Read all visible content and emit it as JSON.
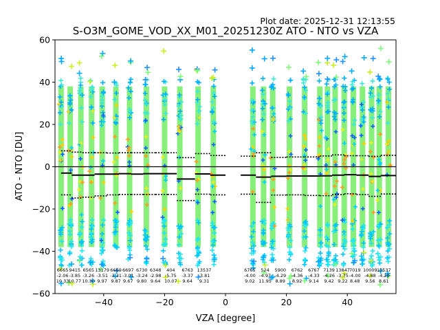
{
  "plot_date": "Plot date: 2025-12-31 12:13:55",
  "chart_data": {
    "type": "scatter",
    "title": "S-O3M_GOME_VOD_XX_M01_20251230Z ATO - NTO vs VZA",
    "xlabel": "VZA [degree]",
    "ylabel": "ATO - NTO [DU]",
    "xlim": [
      -56,
      56
    ],
    "ylim": [
      -60,
      60
    ],
    "xticks": [
      -40,
      -20,
      0,
      20,
      40
    ],
    "yticks": [
      -60,
      -40,
      -20,
      0,
      20,
      40,
      60
    ],
    "xtick_labels": [
      "−40",
      "−20",
      "0",
      "20",
      "40"
    ],
    "ytick_labels": [
      "−60",
      "−40",
      "−20",
      "0",
      "20",
      "40",
      "60"
    ],
    "scatter_columns_x": [
      -54,
      -51,
      -47.5,
      -44,
      -40.5,
      -36,
      -31.5,
      -26,
      -20,
      -15,
      -9,
      -4,
      9,
      12.5,
      15.5,
      21,
      26,
      31,
      33.5,
      36,
      39,
      42,
      45,
      48,
      50.5,
      53.5
    ],
    "zero_line": 0,
    "mean_series": {
      "name": "mean",
      "points": [
        [
          -54,
          -3
        ],
        [
          -50.5,
          -4
        ],
        [
          -47,
          -4
        ],
        [
          -43,
          -3.5
        ],
        [
          -39,
          -3.5
        ],
        [
          -35,
          -3.3
        ],
        [
          -31,
          -3.5
        ],
        [
          -27,
          -3.3
        ],
        [
          -23,
          -3.3
        ],
        [
          -19,
          -3.3
        ],
        [
          -16,
          -5.8
        ],
        [
          -10,
          -3.4
        ],
        [
          -5,
          -4
        ],
        [
          5,
          -4
        ],
        [
          10,
          -4.9
        ],
        [
          15,
          -4.5
        ],
        [
          20,
          -4.4
        ],
        [
          26,
          -4.4
        ],
        [
          31,
          -4.3
        ],
        [
          35,
          -4
        ],
        [
          39,
          -3.8
        ],
        [
          43,
          -4
        ],
        [
          47,
          -4.6
        ],
        [
          51,
          -4.2
        ],
        [
          56,
          -4
        ]
      ]
    },
    "std_upper_series": {
      "name": "mean + std",
      "points": [
        [
          -54,
          7.5
        ],
        [
          -50.5,
          6.9
        ],
        [
          -47,
          6.6
        ],
        [
          -43,
          6.6
        ],
        [
          -39,
          6.5
        ],
        [
          -35,
          6.6
        ],
        [
          -31,
          6.6
        ],
        [
          -27,
          6.6
        ],
        [
          -23,
          6.6
        ],
        [
          -19,
          6.6
        ],
        [
          -16,
          4.3
        ],
        [
          -10,
          6.2
        ],
        [
          -5,
          5.3
        ],
        [
          5,
          5.0
        ],
        [
          10,
          6.6
        ],
        [
          15,
          4.4
        ],
        [
          20,
          4.6
        ],
        [
          26,
          4.6
        ],
        [
          31,
          5.1
        ],
        [
          35,
          5.6
        ],
        [
          39,
          5.2
        ],
        [
          43,
          5.2
        ],
        [
          47,
          4.9
        ],
        [
          51,
          5.4
        ],
        [
          56,
          4.4
        ]
      ]
    },
    "std_lower_series": {
      "name": "mean - std",
      "points": [
        [
          -54,
          -13.3
        ],
        [
          -50.5,
          -14.8
        ],
        [
          -47,
          -14.4
        ],
        [
          -43,
          -13.8
        ],
        [
          -39,
          -13.3
        ],
        [
          -35,
          -13.1
        ],
        [
          -31,
          -13.1
        ],
        [
          -27,
          -13.1
        ],
        [
          -23,
          -13.1
        ],
        [
          -19,
          -13.1
        ],
        [
          -16,
          -16.0
        ],
        [
          -10,
          -13.0
        ],
        [
          -5,
          -13.3
        ],
        [
          5,
          -13.0
        ],
        [
          10,
          -16.9
        ],
        [
          15,
          -13.4
        ],
        [
          20,
          -13.3
        ],
        [
          26,
          -13.6
        ],
        [
          31,
          -13.7
        ],
        [
          35,
          -13.2
        ],
        [
          39,
          -12.8
        ],
        [
          43,
          -13.2
        ],
        [
          47,
          -14.0
        ],
        [
          51,
          -12.9
        ],
        [
          56,
          -12.6
        ]
      ]
    },
    "annotations": [
      {
        "x": -53.5,
        "count": "6665",
        "mean": "-2.06",
        "std": "10.33"
      },
      {
        "x": -49.5,
        "count": "9415",
        "mean": "-3.85",
        "std": "10.77"
      },
      {
        "x": -45,
        "count": "6565",
        "mean": "-3.26",
        "std": "10.30"
      },
      {
        "x": -40.5,
        "count": "13179",
        "mean": "-3.51",
        "std": "9.97"
      },
      {
        "x": -36,
        "count": "6669",
        "mean": "-3.31",
        "std": "9.87"
      },
      {
        "x": -32,
        "count": "6697",
        "mean": "-3.01",
        "std": "9.67"
      },
      {
        "x": -27.5,
        "count": "6730",
        "mean": "-3.24",
        "std": "9.80"
      },
      {
        "x": -23,
        "count": "6348",
        "mean": "-2.98",
        "std": "9.64"
      },
      {
        "x": -18,
        "count": "404",
        "mean": "-5.75",
        "std": "10.07"
      },
      {
        "x": -12.5,
        "count": "6763",
        "mean": "-3.37",
        "std": "9.64"
      },
      {
        "x": -7,
        "count": "13537",
        "mean": "-3.81",
        "std": "9.31"
      },
      {
        "x": 8,
        "count": "6765",
        "mean": "-4.00",
        "std": "9.02"
      },
      {
        "x": 13,
        "count": "524",
        "mean": "-4.97",
        "std": "11.95"
      },
      {
        "x": 18,
        "count": "5900",
        "mean": "-4.29",
        "std": "8.89"
      },
      {
        "x": 23.5,
        "count": "6762",
        "mean": "-4.36",
        "std": "8.92"
      },
      {
        "x": 29,
        "count": "6767",
        "mean": "-4.33",
        "std": "9.14"
      },
      {
        "x": 34,
        "count": "7139",
        "mean": "-4.26",
        "std": "9.42"
      },
      {
        "x": 38.5,
        "count": "13847",
        "mean": "-3.75",
        "std": "9.22"
      },
      {
        "x": 42.5,
        "count": "7019",
        "mean": "-4.00",
        "std": "8.48"
      },
      {
        "x": 47.5,
        "count": "10009",
        "mean": "-4.88",
        "std": "9.56"
      },
      {
        "x": 52,
        "count": "10537",
        "mean": "-4.20",
        "std": "8.61"
      }
    ]
  }
}
